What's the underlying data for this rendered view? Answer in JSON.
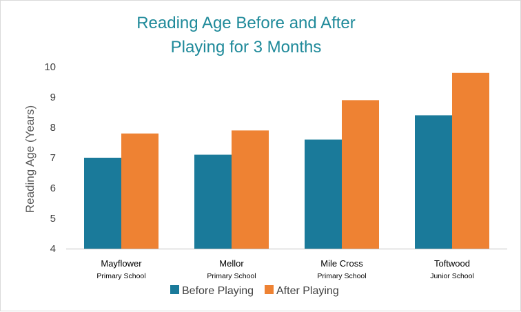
{
  "chart_data": {
    "type": "bar",
    "title_lines": [
      "Reading Age Before and After",
      "Playing for 3 Months"
    ],
    "ylabel": "Reading Age (Years)",
    "xlabel": "",
    "ylim": [
      4,
      10
    ],
    "yticks": [
      4,
      5,
      6,
      7,
      8,
      9,
      10
    ],
    "grid": false,
    "legend_position": "bottom",
    "categories": [
      {
        "line1": "Mayflower",
        "line2": "Primary School"
      },
      {
        "line1": "Mellor",
        "line2": "Primary School"
      },
      {
        "line1": "Mile Cross",
        "line2": "Primary School"
      },
      {
        "line1": "Toftwood",
        "line2": "Junior School"
      }
    ],
    "series": [
      {
        "name": "Before Playing",
        "color": "#1a7a9a",
        "values": [
          7.0,
          7.1,
          7.6,
          8.4
        ]
      },
      {
        "name": "After Playing",
        "color": "#ee8233",
        "values": [
          7.8,
          7.9,
          8.9,
          9.8
        ]
      }
    ],
    "colors": {
      "title": "#1f8a9a",
      "axis": "#bfbfbf"
    }
  }
}
